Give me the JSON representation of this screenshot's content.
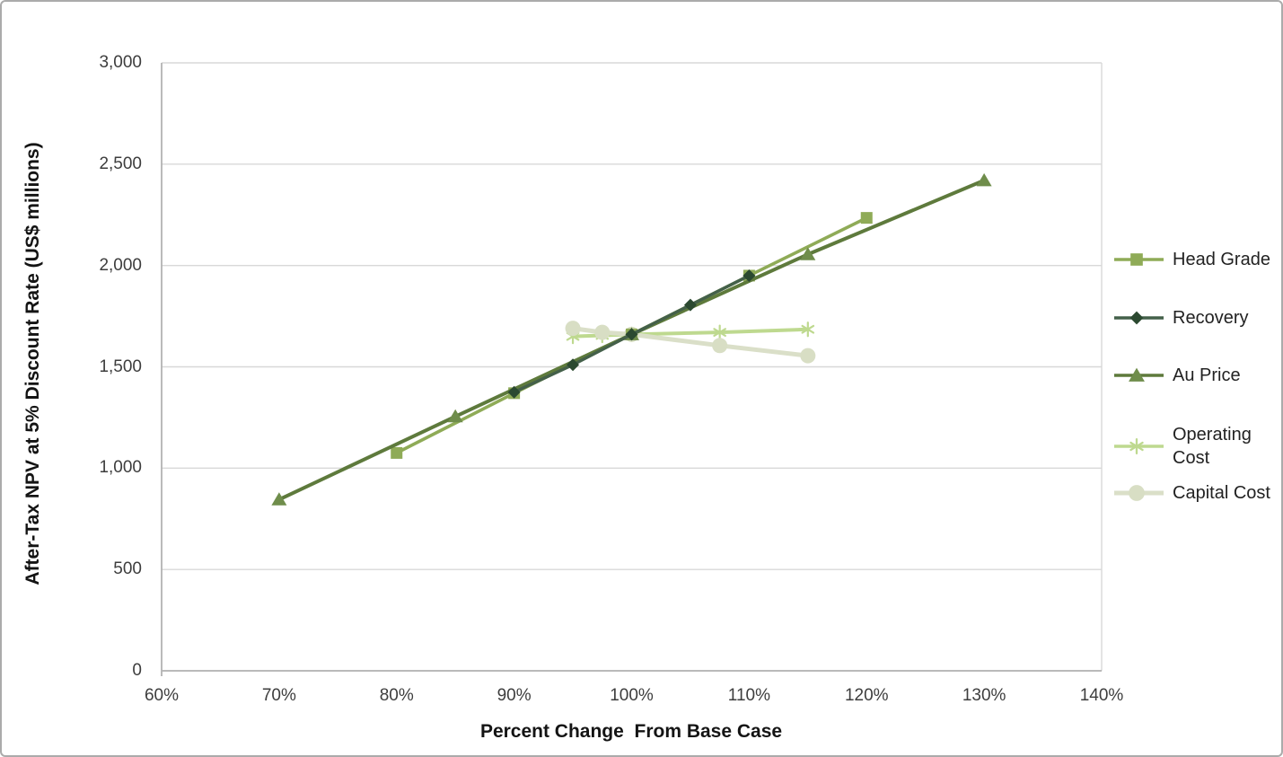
{
  "chart_data": {
    "type": "line",
    "title": "",
    "xlabel": "Percent Change  From Base Case",
    "ylabel": "After-Tax NPV at 5% Discount Rate (US$ millions)",
    "xlim": [
      60,
      140
    ],
    "ylim": [
      0,
      3000
    ],
    "grid": "horizontal",
    "legend_position": "right",
    "x_ticks": [
      {
        "value": 60,
        "label": "60%"
      },
      {
        "value": 70,
        "label": "70%"
      },
      {
        "value": 80,
        "label": "80%"
      },
      {
        "value": 90,
        "label": "90%"
      },
      {
        "value": 100,
        "label": "100%"
      },
      {
        "value": 110,
        "label": "110%"
      },
      {
        "value": 120,
        "label": "120%"
      },
      {
        "value": 130,
        "label": "130%"
      },
      {
        "value": 140,
        "label": "140%"
      }
    ],
    "y_ticks": [
      {
        "value": 0,
        "label": "0"
      },
      {
        "value": 500,
        "label": "500"
      },
      {
        "value": 1000,
        "label": "1,000"
      },
      {
        "value": 1500,
        "label": "1,500"
      },
      {
        "value": 2000,
        "label": "2,000"
      },
      {
        "value": 2500,
        "label": "2,500"
      },
      {
        "value": 3000,
        "label": "3,000"
      }
    ],
    "base_case": {
      "x": 100,
      "y": 1660
    },
    "series": [
      {
        "name": "Head Grade",
        "marker": "square",
        "line_color": "#8FAB57",
        "marker_color": "#8FAB57",
        "x": [
          80,
          90,
          100,
          110,
          120
        ],
        "y": [
          1075,
          1370,
          1660,
          1950,
          2235
        ]
      },
      {
        "name": "Recovery",
        "marker": "diamond",
        "line_color": "#44604A",
        "marker_color": "#2B4930",
        "x": [
          90,
          95,
          100,
          105,
          110
        ],
        "y": [
          1375,
          1510,
          1660,
          1805,
          1950
        ]
      },
      {
        "name": "Au Price",
        "marker": "triangle",
        "line_color": "#5E7A3C",
        "marker_color": "#6F8D4B",
        "x": [
          70,
          85,
          100,
          115,
          130
        ],
        "y": [
          845,
          1255,
          1660,
          2055,
          2420
        ]
      },
      {
        "name": "Operating Cost",
        "marker": "asterisk",
        "line_color": "#BED98F",
        "marker_color": "#BED98F",
        "x": [
          95,
          97.5,
          100,
          107.5,
          115
        ],
        "y": [
          1650,
          1655,
          1660,
          1670,
          1685
        ]
      },
      {
        "name": "Capital Cost",
        "marker": "circle",
        "line_color": "#DADFC8",
        "marker_color": "#D8DEC4",
        "x": [
          95,
          97.5,
          100,
          107.5,
          115
        ],
        "y": [
          1690,
          1670,
          1660,
          1605,
          1555
        ]
      }
    ]
  },
  "colors": {
    "background": "#FFFFFF",
    "frame_border": "#ABABAB",
    "gridline": "#D8D8D8",
    "axis_line": "#B3B3B3",
    "tick_text": "#3D3D3D",
    "title_text": "#141414",
    "legend_text": "#222222"
  }
}
